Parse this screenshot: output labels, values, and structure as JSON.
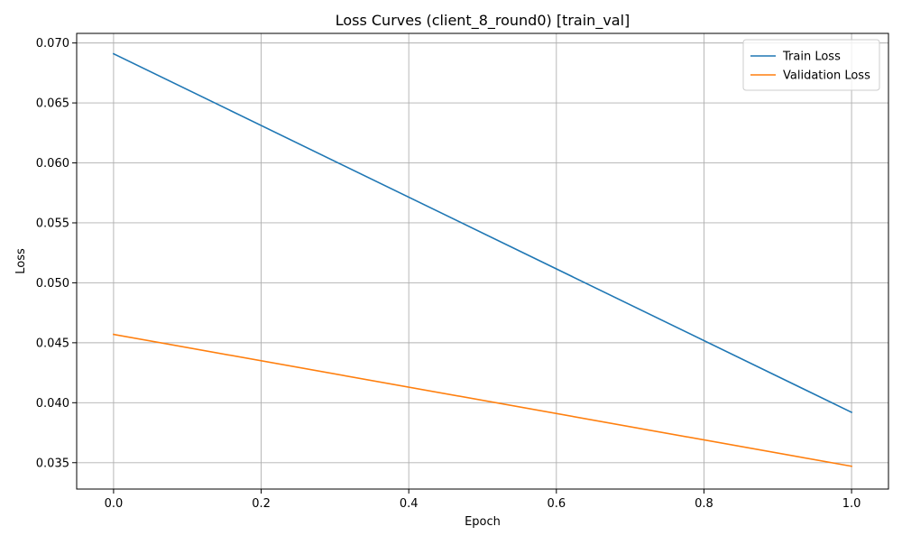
{
  "chart_data": {
    "type": "line",
    "title": "Loss Curves (client_8_round0) [train_val]",
    "xlabel": "Epoch",
    "ylabel": "Loss",
    "xlim": [
      -0.05,
      1.05
    ],
    "ylim": [
      0.0328,
      0.0708
    ],
    "xticks": [
      0.0,
      0.2,
      0.4,
      0.6,
      0.8,
      1.0
    ],
    "xtick_labels": [
      "0.0",
      "0.2",
      "0.4",
      "0.6",
      "0.8",
      "1.0"
    ],
    "yticks": [
      0.035,
      0.04,
      0.045,
      0.05,
      0.055,
      0.06,
      0.065,
      0.07
    ],
    "ytick_labels": [
      "0.035",
      "0.040",
      "0.045",
      "0.050",
      "0.055",
      "0.060",
      "0.065",
      "0.070"
    ],
    "grid": true,
    "legend_position": "top-right",
    "series": [
      {
        "name": "Train Loss",
        "color": "#1f77b4",
        "x": [
          0.0,
          1.0
        ],
        "y": [
          0.0691,
          0.0392
        ]
      },
      {
        "name": "Validation Loss",
        "color": "#ff7f0e",
        "x": [
          0.0,
          1.0
        ],
        "y": [
          0.0457,
          0.0347
        ]
      }
    ]
  }
}
